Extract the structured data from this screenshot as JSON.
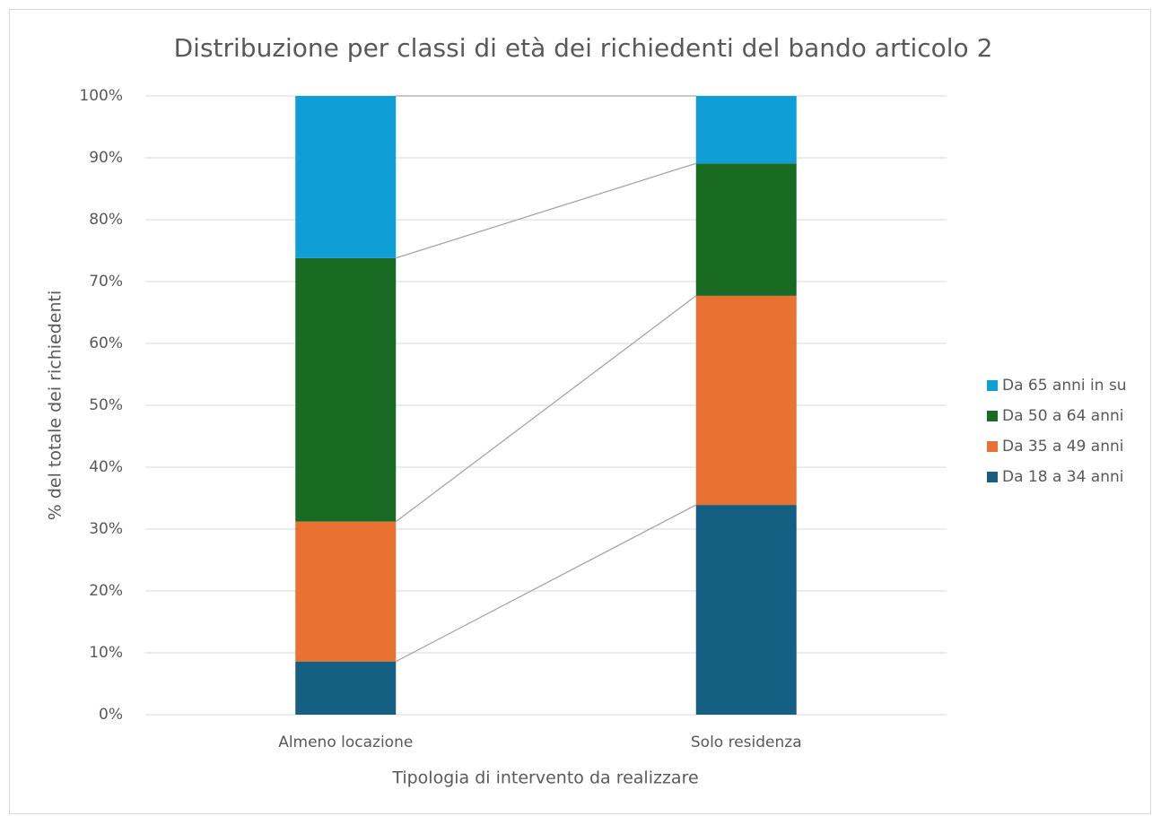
{
  "chart_data": {
    "type": "stacked_bar",
    "title": "Distribuzione per classi di età dei richiedenti del bando articolo 2",
    "x_label": "Tipologia di intervento da realizzare",
    "y_label": "% del totale dei richiedenti",
    "categories": [
      "Almeno locazione",
      "Solo residenza"
    ],
    "series": [
      {
        "name": "Da 18 a 34 anni",
        "color": "#156082",
        "values": [
          8.6,
          33.9
        ]
      },
      {
        "name": "Da 35 a 49 anni",
        "color": "#e97132",
        "values": [
          22.6,
          33.8
        ]
      },
      {
        "name": "Da 50 a 64 anni",
        "color": "#196b24",
        "values": [
          42.6,
          21.4
        ]
      },
      {
        "name": "Da 65 anni in su",
        "color": "#0f9ed5",
        "values": [
          26.2,
          10.9
        ]
      }
    ],
    "ylim": [
      0,
      100
    ],
    "yticks": [
      {
        "value": 0,
        "label": "0%"
      },
      {
        "value": 10,
        "label": "10%"
      },
      {
        "value": 20,
        "label": "20%"
      },
      {
        "value": 30,
        "label": "30%"
      },
      {
        "value": 40,
        "label": "40%"
      },
      {
        "value": 50,
        "label": "50%"
      },
      {
        "value": 60,
        "label": "60%"
      },
      {
        "value": 70,
        "label": "70%"
      },
      {
        "value": 80,
        "label": "80%"
      },
      {
        "value": 90,
        "label": "90%"
      },
      {
        "value": 100,
        "label": "100%"
      }
    ],
    "grid": true,
    "series_lines": true,
    "legend": "right"
  }
}
